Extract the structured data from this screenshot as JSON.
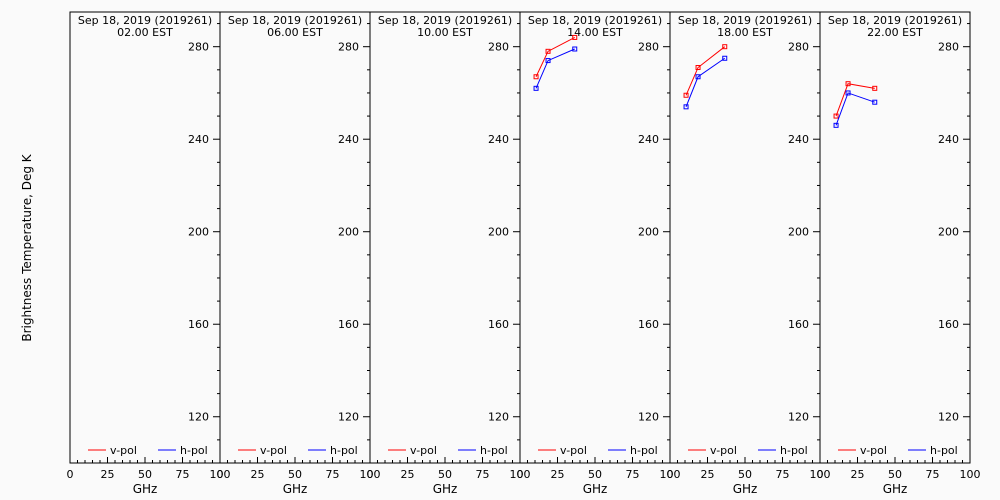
{
  "chart_data": {
    "type": "line",
    "ylabel": "Brightness Temperature, Deg K",
    "xlabel": "GHz",
    "xlim": [
      0,
      100
    ],
    "ylim": [
      100,
      295
    ],
    "x_ticks": [
      0,
      25,
      50,
      75,
      100
    ],
    "y_ticks": [
      120,
      160,
      200,
      240,
      280
    ],
    "legend": [
      {
        "name": "v-pol",
        "color": "#ff0000"
      },
      {
        "name": "h-pol",
        "color": "#0000ff"
      }
    ],
    "panels": [
      {
        "title": "Sep 18, 2019 (2019261)",
        "subtitle": "02.00 EST",
        "series": [
          {
            "name": "v-pol",
            "x": [],
            "y": []
          },
          {
            "name": "h-pol",
            "x": [],
            "y": []
          }
        ]
      },
      {
        "title": "Sep 18, 2019 (2019261)",
        "subtitle": "06.00 EST",
        "series": [
          {
            "name": "v-pol",
            "x": [],
            "y": []
          },
          {
            "name": "h-pol",
            "x": [],
            "y": []
          }
        ]
      },
      {
        "title": "Sep 18, 2019 (2019261)",
        "subtitle": "10.00 EST",
        "series": [
          {
            "name": "v-pol",
            "x": [],
            "y": []
          },
          {
            "name": "h-pol",
            "x": [],
            "y": []
          }
        ]
      },
      {
        "title": "Sep 18, 2019 (2019261)",
        "subtitle": "14.00 EST",
        "series": [
          {
            "name": "v-pol",
            "x": [
              10.7,
              18.7,
              36.5
            ],
            "y": [
              267,
              278,
              284
            ]
          },
          {
            "name": "h-pol",
            "x": [
              10.7,
              18.7,
              36.5
            ],
            "y": [
              262,
              274,
              279
            ]
          }
        ]
      },
      {
        "title": "Sep 18, 2019 (2019261)",
        "subtitle": "18.00 EST",
        "series": [
          {
            "name": "v-pol",
            "x": [
              10.7,
              18.7,
              36.5
            ],
            "y": [
              259,
              271,
              280
            ]
          },
          {
            "name": "h-pol",
            "x": [
              10.7,
              18.7,
              36.5
            ],
            "y": [
              254,
              267,
              275
            ]
          }
        ]
      },
      {
        "title": "Sep 18, 2019 (2019261)",
        "subtitle": "22.00 EST",
        "series": [
          {
            "name": "v-pol",
            "x": [
              10.7,
              18.7,
              36.5
            ],
            "y": [
              250,
              264,
              262
            ]
          },
          {
            "name": "h-pol",
            "x": [
              10.7,
              18.7,
              36.5
            ],
            "y": [
              246,
              260,
              256
            ]
          }
        ]
      }
    ]
  }
}
